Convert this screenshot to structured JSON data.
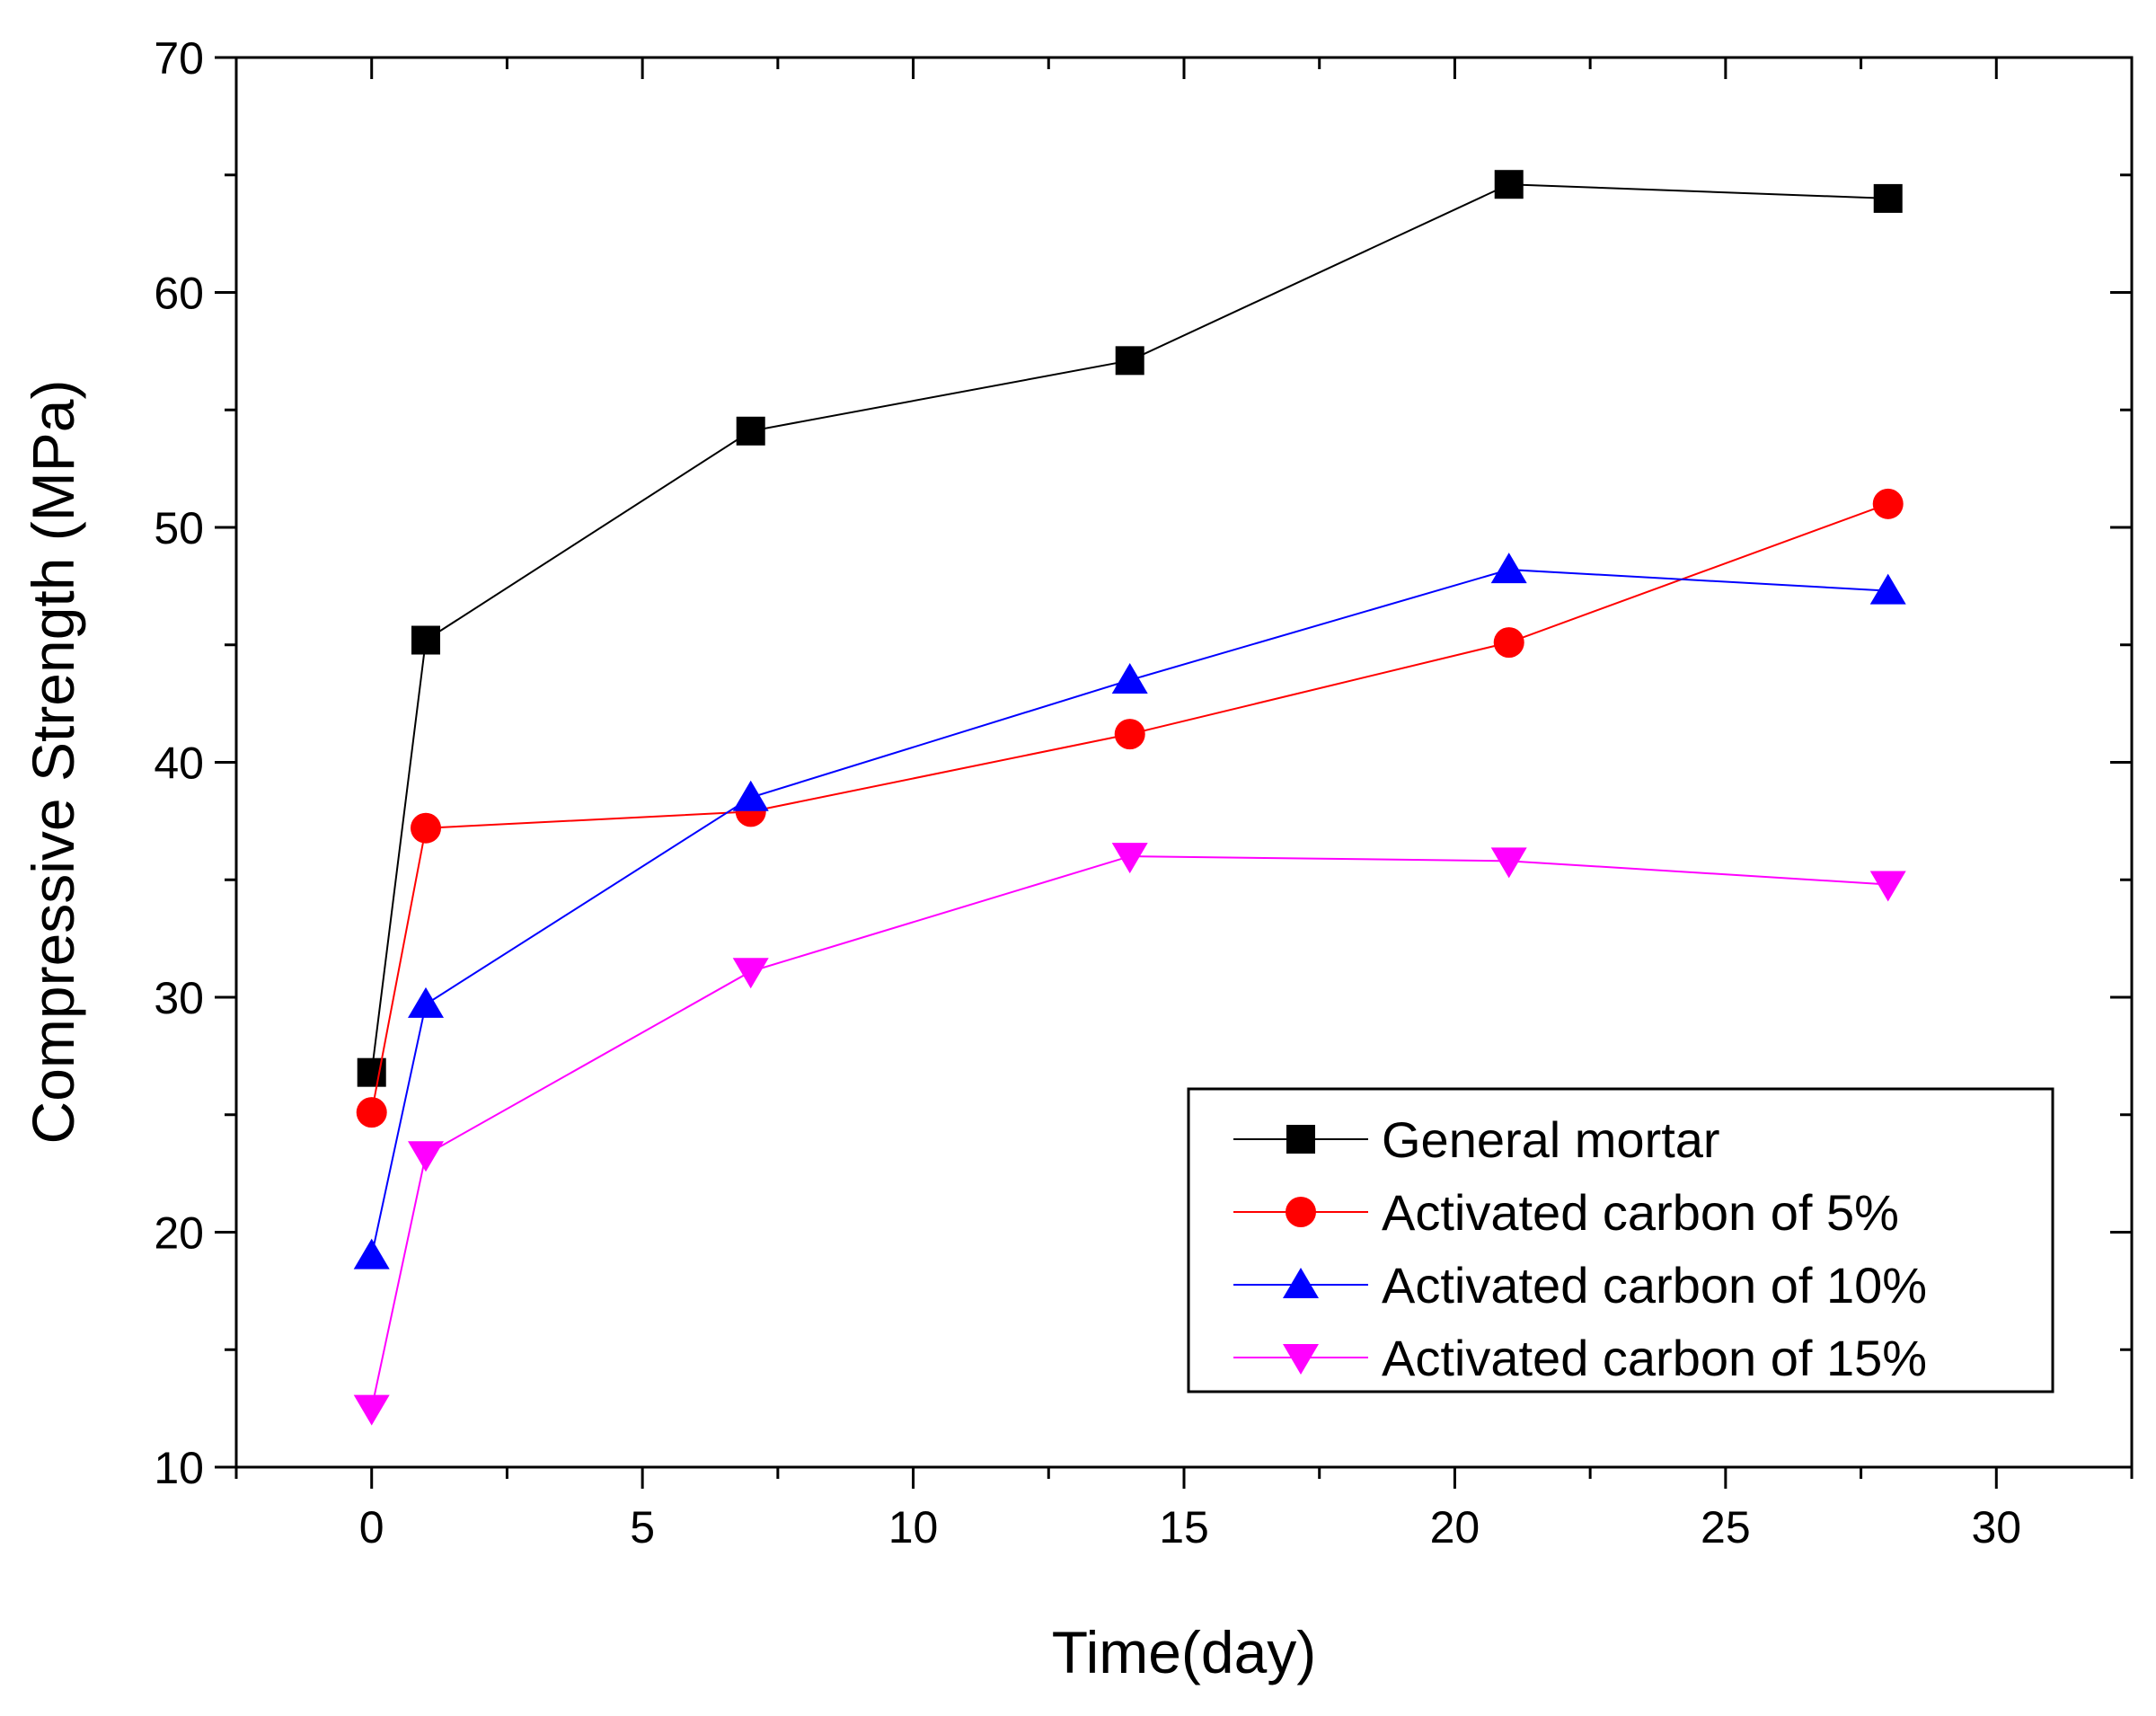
{
  "chart_data": {
    "type": "line",
    "title": "",
    "xlabel": "Time(day)",
    "ylabel": "Compressive Strength (MPa)",
    "xlim": [
      -2.5,
      32.5
    ],
    "ylim": [
      10,
      70
    ],
    "xticks": [
      0,
      5,
      10,
      15,
      20,
      25,
      30
    ],
    "yticks": [
      10,
      20,
      30,
      40,
      50,
      60,
      70
    ],
    "grid": false,
    "legend_position": "bottom-right",
    "x": [
      0,
      1,
      7,
      14,
      21,
      28
    ],
    "series": [
      {
        "name": "General mortar",
        "color": "#000000",
        "marker": "square",
        "values": [
          26.8,
          45.2,
          54.1,
          57.1,
          64.6,
          64.0
        ]
      },
      {
        "name": "Activated carbon of 5%",
        "color": "#ff0000",
        "marker": "circle",
        "values": [
          25.1,
          37.2,
          37.9,
          41.2,
          45.1,
          51.0
        ]
      },
      {
        "name": "Activated carbon of 10%",
        "color": "#0000ff",
        "marker": "triangle-up",
        "values": [
          19.0,
          29.7,
          38.5,
          43.5,
          48.2,
          47.3
        ]
      },
      {
        "name": "Activated carbon of 15%",
        "color": "#ff00ff",
        "marker": "triangle-down",
        "values": [
          12.5,
          23.3,
          31.1,
          36.0,
          35.8,
          34.8
        ]
      }
    ]
  }
}
